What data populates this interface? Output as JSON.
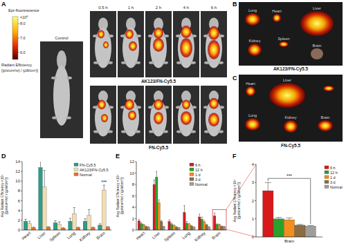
{
  "panels": {
    "letters": [
      "A",
      "B",
      "C",
      "D",
      "E",
      "F"
    ],
    "imaging": {
      "legend_title": "Epi-fluorescence",
      "colorbar_label": "Radiant Efficiency",
      "colorbar_units": "[(p/s/cm²/sr) / (µW/cm²)]",
      "colorbar_scale": "×10⁸",
      "colorbar_range": [
        5.5,
        8.5
      ],
      "colorbar_ticks": [
        {
          "value": 8,
          "label": "8.0"
        },
        {
          "value": 7,
          "label": "7.0"
        },
        {
          "value": 6,
          "label": "6.0"
        }
      ],
      "control": "Control",
      "times": [
        "0.5 h",
        "1 h",
        "2 h",
        "4 h",
        "6 h"
      ],
      "groups": [
        "AK123/FN-Cy5.5",
        "FN-Cy5.5"
      ]
    },
    "organs_b": {
      "organs": [
        "Lung",
        "Heart",
        "Liver",
        "Spleen",
        "Kidney",
        "Brain"
      ],
      "label": "AK123/FN-Cy5.5"
    },
    "organs_c": {
      "organs": [
        "Heart",
        "Liver",
        "Lung",
        "Kidney",
        "Brain"
      ],
      "label": "FN-Cy5.5"
    }
  },
  "chart_data": [
    {
      "type": "bar",
      "y_label": [
        "Avg Radiant Efficiency ×10⁸",
        "[(p/s/cm²/sr) / (µW/cm²)]"
      ],
      "categories": [
        "Heart",
        "Liver",
        "Spleen",
        "Lung",
        "Kidney",
        "Brain"
      ],
      "ylim": [
        0,
        14
      ],
      "yticks": [
        0,
        2,
        4,
        6,
        8,
        10,
        12,
        14
      ],
      "legend": "upper right",
      "series": [
        {
          "name": "FN-Cy5.5",
          "color": "#2e9c8a",
          "values": [
            1.8,
            12.8,
            1.5,
            1.8,
            1.8,
            1.0
          ],
          "errors": [
            0.4,
            1.3,
            0.4,
            0.6,
            0.5,
            0.3
          ]
        },
        {
          "name": "AK123/FN-Cy5.5",
          "color": "#f3dcb0",
          "values": [
            1.3,
            8.8,
            1.2,
            3.3,
            3.0,
            8.2
          ],
          "errors": [
            0.5,
            3.4,
            0.5,
            1.3,
            1.2,
            1.0
          ]
        },
        {
          "name": "Normal",
          "color": "#e8722c",
          "values": [
            0.5,
            0.6,
            0.4,
            0.5,
            0.5,
            0.6
          ],
          "errors": [
            0.1,
            0.1,
            0.1,
            0.1,
            0.1,
            0.1
          ]
        }
      ],
      "annotations": [
        {
          "text": "***",
          "category": "Brain"
        }
      ]
    },
    {
      "type": "bar",
      "y_label": [
        "Avg Radiant Efficiency ×10⁸",
        "[(p/s/cm²/sr) / (µW/cm²)]"
      ],
      "categories": [
        "Heart",
        "Liver",
        "Spleen",
        "Lung",
        "Kidney",
        "Brain"
      ],
      "ylim": [
        0,
        12
      ],
      "yticks": [
        0,
        2,
        4,
        6,
        8,
        10,
        12
      ],
      "legend": "upper right",
      "series": [
        {
          "name": "6 h",
          "color": "#d7191c",
          "values": [
            1.6,
            8.0,
            1.5,
            3.1,
            2.3,
            2.5
          ],
          "errors": [
            0.3,
            0.8,
            0.3,
            1.2,
            0.5,
            0.5
          ]
        },
        {
          "name": "12 h",
          "color": "#2ca02c",
          "values": [
            1.1,
            9.3,
            1.0,
            1.2,
            1.9,
            1.0
          ],
          "errors": [
            0.2,
            1.0,
            0.2,
            0.3,
            0.4,
            0.1
          ]
        },
        {
          "name": "1 d",
          "color": "#f28e1c",
          "values": [
            0.9,
            4.8,
            0.8,
            1.0,
            1.4,
            0.95
          ],
          "errors": [
            0.1,
            0.5,
            0.1,
            0.2,
            0.2,
            0.1
          ]
        },
        {
          "name": "3 d",
          "color": "#8c6d3f",
          "values": [
            0.6,
            1.5,
            0.5,
            0.7,
            0.9,
            0.65
          ],
          "errors": [
            0.1,
            0.2,
            0.1,
            0.1,
            0.1,
            0.05
          ]
        },
        {
          "name": "Normal",
          "color": "#9e9e9e",
          "values": [
            0.5,
            0.6,
            0.4,
            0.5,
            0.5,
            0.6
          ],
          "errors": [
            0.05,
            0.05,
            0.05,
            0.05,
            0.05,
            0.03
          ]
        }
      ]
    },
    {
      "type": "bar",
      "y_label": [
        "Avg Radiant Efficiency ×10⁸",
        "[(p/s/cm²/sr) / (µW/cm²)]"
      ],
      "categories": [
        "Brain"
      ],
      "ylim": [
        0,
        4
      ],
      "yticks": [
        0,
        1,
        2,
        3,
        4
      ],
      "legend": "right",
      "series": [
        {
          "name": "6 h",
          "color": "#d7191c",
          "values": [
            2.55
          ],
          "errors": [
            0.45
          ]
        },
        {
          "name": "12 h",
          "color": "#2ca02c",
          "values": [
            1.0
          ],
          "errors": [
            0.08
          ]
        },
        {
          "name": "1 d",
          "color": "#f28e1c",
          "values": [
            0.95
          ],
          "errors": [
            0.1
          ]
        },
        {
          "name": "3 d",
          "color": "#8c6d3f",
          "values": [
            0.65
          ],
          "errors": [
            0.04
          ]
        },
        {
          "name": "Normal",
          "color": "#9e9e9e",
          "values": [
            0.6
          ],
          "errors": [
            0.03
          ]
        }
      ],
      "annotations": [
        {
          "text": "***",
          "category": "Brain"
        }
      ]
    }
  ]
}
